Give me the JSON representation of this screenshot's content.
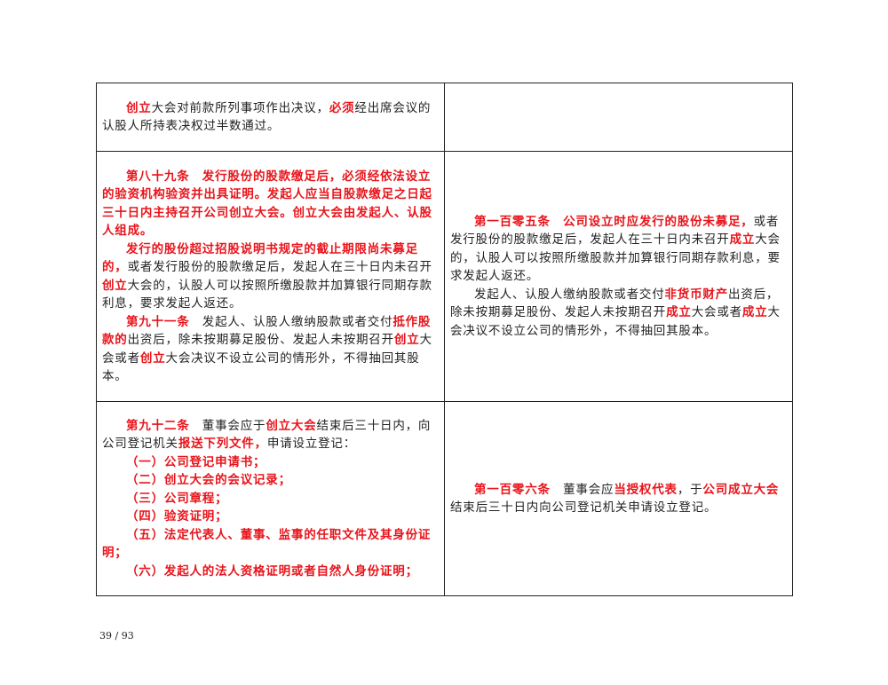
{
  "table": {
    "rows": [
      {
        "cells": [
          {
            "paragraphs": [
              {
                "runs": [
                  {
                    "text": "创立",
                    "red": true
                  },
                  {
                    "text": "大会对前款所列事项作出决议，",
                    "red": false
                  },
                  {
                    "text": "必须",
                    "red": true
                  },
                  {
                    "text": "经出席会议的认股人所持表决权过半数通过。",
                    "red": false
                  }
                ]
              }
            ]
          },
          {
            "paragraphs": []
          }
        ]
      },
      {
        "cells": [
          {
            "paragraphs": [
              {
                "runs": [
                  {
                    "text": "第八十九条　发行股份的股款缴足后，必须经依法设立的验资机构验资并出具证明。发起人应当自股款缴足之日起三十日内主持召开公司创立大会。创立大会由发起人、认股人组成。",
                    "red": true
                  }
                ]
              },
              {
                "runs": [
                  {
                    "text": "发行的股份超过招股说明书规定的截止期限尚未募足的，",
                    "red": true
                  },
                  {
                    "text": "或者发行股份的股款缴足后，发起人在三十日内未召开",
                    "red": false
                  },
                  {
                    "text": "创立",
                    "red": true
                  },
                  {
                    "text": "大会的，认股人可以按照所缴股款并加算银行同期存款利息，要求发起人返还。",
                    "red": false
                  }
                ]
              },
              {
                "runs": [
                  {
                    "text": "第九十一条",
                    "red": true
                  },
                  {
                    "text": "　发起人、认股人缴纳股款或者交付",
                    "red": false
                  },
                  {
                    "text": "抵作股款的",
                    "red": true
                  },
                  {
                    "text": "出资后，除未按期募足股份、发起人未按期召开",
                    "red": false
                  },
                  {
                    "text": "创立",
                    "red": true
                  },
                  {
                    "text": "大会或者",
                    "red": false
                  },
                  {
                    "text": "创立",
                    "red": true
                  },
                  {
                    "text": "大会决议不设立公司的情形外，不得抽回其股本。",
                    "red": false
                  }
                ]
              }
            ]
          },
          {
            "paragraphs": [
              {
                "runs": [
                  {
                    "text": "第一百零五条　公司设立时应发行的股份未募足，",
                    "red": true
                  },
                  {
                    "text": "或者发行股份的股款缴足后，发起人在三十日内未召开",
                    "red": false
                  },
                  {
                    "text": "成立",
                    "red": true
                  },
                  {
                    "text": "大会的，认股人可以按照所缴股款并加算银行同期存款利息，要求发起人返还。",
                    "red": false
                  }
                ]
              },
              {
                "runs": [
                  {
                    "text": "发起人、认股人缴纳股款或者交付",
                    "red": false
                  },
                  {
                    "text": "非货币财产",
                    "red": true
                  },
                  {
                    "text": "出资后，除未按期募足股份、发起人未按期召开",
                    "red": false
                  },
                  {
                    "text": "成立",
                    "red": true
                  },
                  {
                    "text": "大会或者",
                    "red": false
                  },
                  {
                    "text": "成立",
                    "red": true
                  },
                  {
                    "text": "大会决议不设立公司的情形外，不得抽回其股本。",
                    "red": false
                  }
                ]
              }
            ]
          }
        ]
      },
      {
        "cells": [
          {
            "paragraphs": [
              {
                "runs": [
                  {
                    "text": "第九十二条",
                    "red": true
                  },
                  {
                    "text": "　董事会应于",
                    "red": false
                  },
                  {
                    "text": "创立大会",
                    "red": true
                  },
                  {
                    "text": "结束后三十日内，向公司登记机关",
                    "red": false
                  },
                  {
                    "text": "报送下列文件，",
                    "red": true
                  },
                  {
                    "text": "申请设立登记：",
                    "red": false
                  }
                ]
              },
              {
                "runs": [
                  {
                    "text": "（一）公司登记申请书；",
                    "red": true
                  }
                ]
              },
              {
                "runs": [
                  {
                    "text": "（二）创立大会的会议记录；",
                    "red": true
                  }
                ]
              },
              {
                "runs": [
                  {
                    "text": "（三）公司章程；",
                    "red": true
                  }
                ]
              },
              {
                "runs": [
                  {
                    "text": "（四）验资证明；",
                    "red": true
                  }
                ]
              },
              {
                "runs": [
                  {
                    "text": "（五）法定代表人、董事、监事的任职文件及其身份证明；",
                    "red": true
                  }
                ]
              },
              {
                "runs": [
                  {
                    "text": "（六）发起人的法人资格证明或者自然人身份证明；",
                    "red": true
                  }
                ]
              }
            ]
          },
          {
            "paragraphs": [
              {
                "runs": [
                  {
                    "text": "第一百零六条",
                    "red": true
                  },
                  {
                    "text": "　董事会应",
                    "red": false
                  },
                  {
                    "text": "当授权代表",
                    "red": true
                  },
                  {
                    "text": "，于",
                    "red": false
                  },
                  {
                    "text": "公司成立大会",
                    "red": true
                  },
                  {
                    "text": "结束后三十日内向公司登记机关申请设立登记。",
                    "red": false
                  }
                ]
              }
            ]
          }
        ]
      }
    ]
  },
  "footer": {
    "page": "39 / 93"
  }
}
